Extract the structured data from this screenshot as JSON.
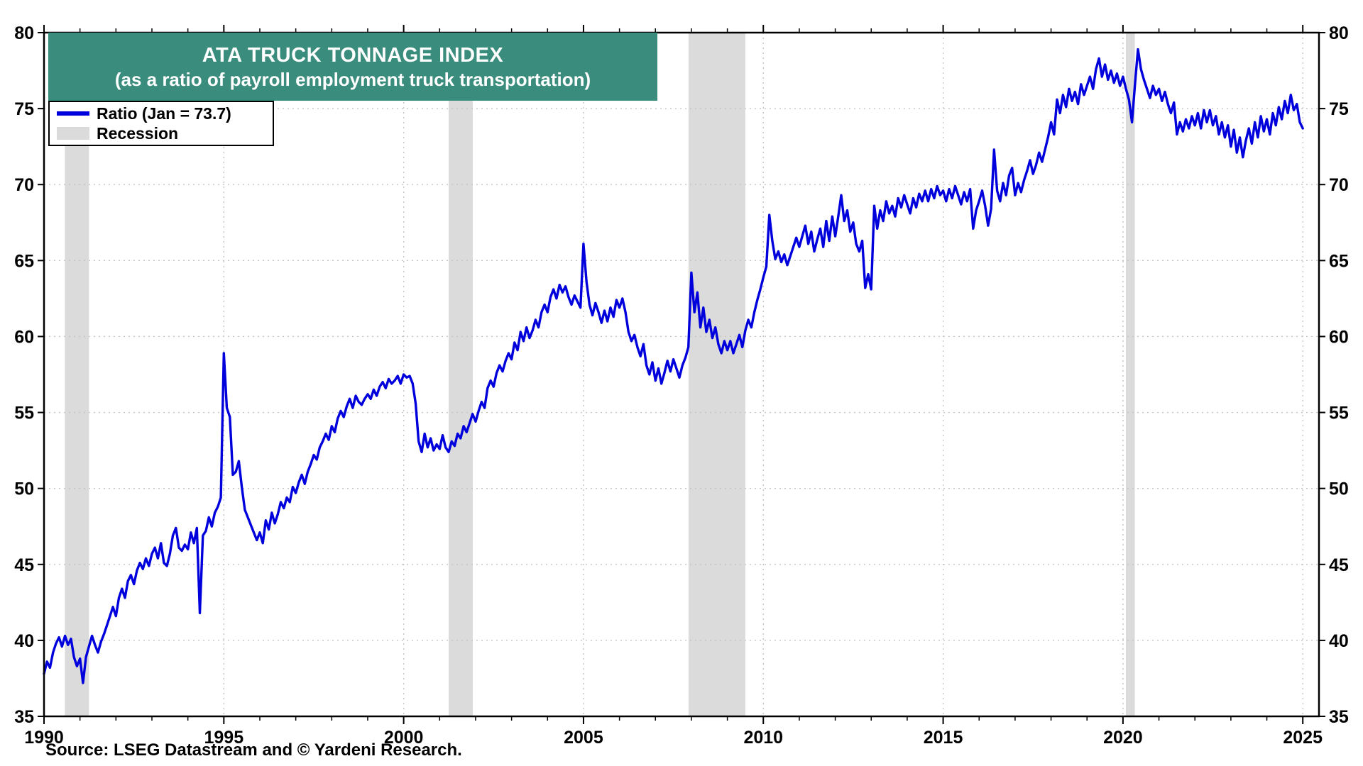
{
  "title": {
    "line1": "ATA TRUCK TONNAGE INDEX",
    "line2": "(as a ratio of payroll employment truck transportation)"
  },
  "legend": {
    "ratio_label": "Ratio (Jan = 73.7)",
    "recession_label": "Recession"
  },
  "source": "Source: LSEG Datastream and © Yardeni Research.",
  "colors": {
    "line": "#0000DD",
    "recession": "#DBDBDB",
    "title_bg": "#3A8C7C",
    "grid": "#C4C4C4",
    "axis": "#000000"
  },
  "chart_data": {
    "type": "line",
    "title": "ATA TRUCK TONNAGE INDEX",
    "subtitle": "(as a ratio of payroll employment truck transportation)",
    "xlabel": "",
    "ylabel": "",
    "xlim": [
      1990,
      2025.45
    ],
    "ylim": [
      35,
      80
    ],
    "yticks": [
      35,
      40,
      45,
      50,
      55,
      60,
      65,
      70,
      75,
      80
    ],
    "xticks": [
      1990,
      1995,
      2000,
      2005,
      2010,
      2015,
      2020,
      2025
    ],
    "grid": true,
    "legend_position": "top-left",
    "recessions": [
      [
        1990.58,
        1991.25
      ],
      [
        2001.25,
        2001.92
      ],
      [
        2007.92,
        2009.5
      ],
      [
        2020.08,
        2020.33
      ]
    ],
    "series": [
      {
        "name": "Ratio (Jan = 73.7)",
        "start_year": 1990,
        "frequency": "monthly",
        "last_value": 73.7,
        "values": [
          37.8,
          38.6,
          38.2,
          39.2,
          39.8,
          40.2,
          39.6,
          40.3,
          39.7,
          40.1,
          38.9,
          38.3,
          38.8,
          37.2,
          38.9,
          39.6,
          40.3,
          39.7,
          39.2,
          39.9,
          40.4,
          41.0,
          41.6,
          42.2,
          41.6,
          42.8,
          43.4,
          42.8,
          43.9,
          44.3,
          43.7,
          44.6,
          45.1,
          44.7,
          45.4,
          44.9,
          45.7,
          46.1,
          45.4,
          46.4,
          45.1,
          44.9,
          45.7,
          46.9,
          47.4,
          46.1,
          45.9,
          46.3,
          46.0,
          47.1,
          46.4,
          47.4,
          41.8,
          46.9,
          47.2,
          48.1,
          47.5,
          48.4,
          48.8,
          49.4,
          58.9,
          55.3,
          54.7,
          50.9,
          51.1,
          51.8,
          50.1,
          48.6,
          48.1,
          47.6,
          47.1,
          46.6,
          47.1,
          46.4,
          47.9,
          47.3,
          48.4,
          47.7,
          48.3,
          49.1,
          48.7,
          49.4,
          49.1,
          50.1,
          49.7,
          50.4,
          50.9,
          50.3,
          51.1,
          51.6,
          52.2,
          51.9,
          52.7,
          53.1,
          53.6,
          53.2,
          54.1,
          53.7,
          54.6,
          55.1,
          54.7,
          55.4,
          55.9,
          55.3,
          56.1,
          55.7,
          55.5,
          55.9,
          56.2,
          55.9,
          56.5,
          56.1,
          56.7,
          57.0,
          56.6,
          57.2,
          56.9,
          57.1,
          57.4,
          56.9,
          57.5,
          57.3,
          57.4,
          56.9,
          55.6,
          53.1,
          52.4,
          53.6,
          52.7,
          53.3,
          52.5,
          52.9,
          52.6,
          53.5,
          52.7,
          52.4,
          53.1,
          52.8,
          53.6,
          53.3,
          54.1,
          53.7,
          54.3,
          54.9,
          54.4,
          55.1,
          55.7,
          55.3,
          56.6,
          57.1,
          56.7,
          57.6,
          58.1,
          57.7,
          58.4,
          58.9,
          58.5,
          59.6,
          59.1,
          60.3,
          59.7,
          60.6,
          59.9,
          60.4,
          61.1,
          60.6,
          61.6,
          62.1,
          61.6,
          62.6,
          63.1,
          62.5,
          63.4,
          62.9,
          63.3,
          62.6,
          62.1,
          62.7,
          62.3,
          61.9,
          66.1,
          63.6,
          62.1,
          61.4,
          62.2,
          61.6,
          60.9,
          61.7,
          61.0,
          61.9,
          61.3,
          62.4,
          61.9,
          62.5,
          61.6,
          60.3,
          59.7,
          60.1,
          59.3,
          58.7,
          59.5,
          58.1,
          57.5,
          58.3,
          57.1,
          57.9,
          56.9,
          57.6,
          58.4,
          57.7,
          58.5,
          57.9,
          57.3,
          58.1,
          58.6,
          59.3,
          64.2,
          61.6,
          62.9,
          60.6,
          61.9,
          60.3,
          61.1,
          59.9,
          60.6,
          59.5,
          58.9,
          59.7,
          59.1,
          59.7,
          58.9,
          59.5,
          60.1,
          59.3,
          60.4,
          61.1,
          60.6,
          61.6,
          62.4,
          63.1,
          63.9,
          64.6,
          68.0,
          66.3,
          65.1,
          65.6,
          64.9,
          65.4,
          64.7,
          65.3,
          65.9,
          66.5,
          65.9,
          66.6,
          67.3,
          66.1,
          66.9,
          65.6,
          66.4,
          67.1,
          65.9,
          67.6,
          66.3,
          67.9,
          66.6,
          67.9,
          69.3,
          67.6,
          68.3,
          66.9,
          67.5,
          66.1,
          65.6,
          66.3,
          63.2,
          64.1,
          63.1,
          68.6,
          67.1,
          68.3,
          67.6,
          68.9,
          68.1,
          68.6,
          67.9,
          69.1,
          68.5,
          69.3,
          68.7,
          68.1,
          69.1,
          68.5,
          69.4,
          68.9,
          69.6,
          68.9,
          69.7,
          69.1,
          69.9,
          69.3,
          69.6,
          68.9,
          69.7,
          69.1,
          69.9,
          69.3,
          68.7,
          69.5,
          68.9,
          69.7,
          67.1,
          68.3,
          68.9,
          69.6,
          68.6,
          67.3,
          68.4,
          72.3,
          69.6,
          68.9,
          70.1,
          69.3,
          70.6,
          71.1,
          69.3,
          70.1,
          69.5,
          70.3,
          70.9,
          71.6,
          70.7,
          71.3,
          72.1,
          71.5,
          72.3,
          73.1,
          74.1,
          73.3,
          75.6,
          74.7,
          75.9,
          75.1,
          76.3,
          75.5,
          76.1,
          75.3,
          76.6,
          75.9,
          76.5,
          77.1,
          76.3,
          77.6,
          78.3,
          77.1,
          77.9,
          76.9,
          77.5,
          76.7,
          77.3,
          76.5,
          77.1,
          76.3,
          75.6,
          74.1,
          76.6,
          78.9,
          77.6,
          76.9,
          76.3,
          75.7,
          76.5,
          75.9,
          76.3,
          75.5,
          76.1,
          75.3,
          74.7,
          75.4,
          73.3,
          74.1,
          73.5,
          74.3,
          73.7,
          74.5,
          73.9,
          74.7,
          73.7,
          74.9,
          74.1,
          74.9,
          73.9,
          74.5,
          73.3,
          74.1,
          73.1,
          73.9,
          72.5,
          73.6,
          72.1,
          73.1,
          71.8,
          72.9,
          73.7,
          72.7,
          74.1,
          73.1,
          74.5,
          73.5,
          74.3,
          73.3,
          74.7,
          73.9,
          75.1,
          74.3,
          75.5,
          74.7,
          75.9,
          74.9,
          75.3,
          74.1,
          73.7
        ]
      }
    ]
  }
}
